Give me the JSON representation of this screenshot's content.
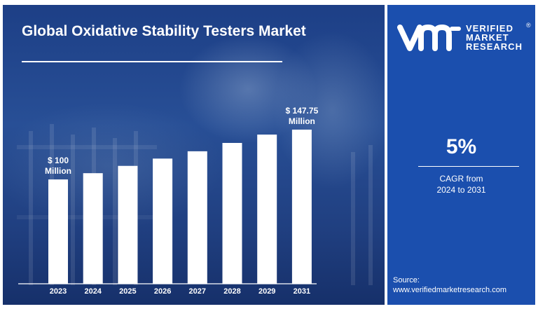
{
  "title": "Global Oxidative Stability Testers Market",
  "chart_data": {
    "type": "bar",
    "categories": [
      "2023",
      "2024",
      "2025",
      "2026",
      "2027",
      "2028",
      "2029",
      "2031"
    ],
    "values": [
      100,
      106,
      113,
      120,
      127,
      135,
      143,
      147.75
    ],
    "data_labels": [
      {
        "category": "2023",
        "text": [
          "$ 100",
          "Million"
        ]
      },
      {
        "category": "2031",
        "text": [
          "$ 147.75",
          "Million"
        ]
      }
    ],
    "title": "Global Oxidative Stability Testers Market",
    "xlabel": "",
    "ylabel": "",
    "ylim": [
      0,
      150
    ],
    "grid": false,
    "bar_color": "#ffffff"
  },
  "brand": {
    "lines": [
      "VERIFIED",
      "MARKET",
      "RESEARCH"
    ],
    "reg": "®"
  },
  "cagr": {
    "value": "5%",
    "label_lines": [
      "CAGR from",
      "2024 to 2031"
    ]
  },
  "source": {
    "label": "Source:",
    "url": "www.verifiedmarketresearch.com"
  },
  "colors": {
    "panel_blue": "#1b4fae",
    "background_blue": "#234a92",
    "text": "#ffffff"
  }
}
